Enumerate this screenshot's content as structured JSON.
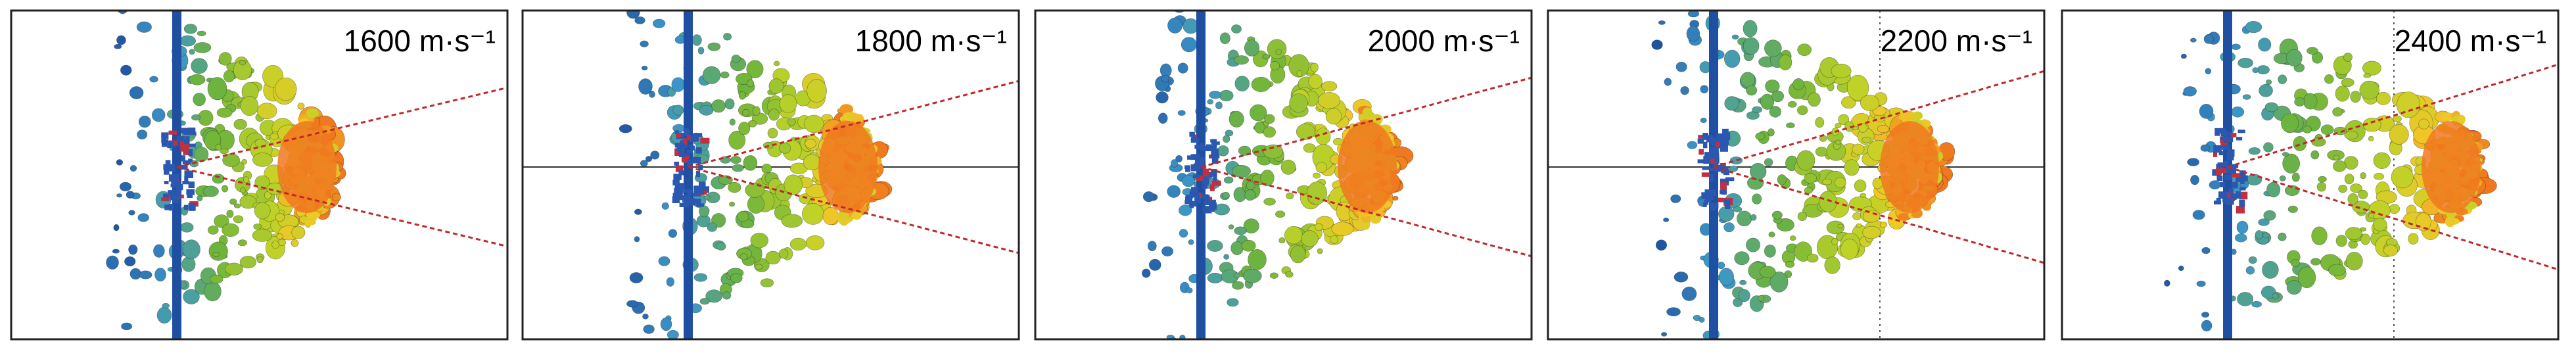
{
  "panels": [
    {
      "label": "1600 m·s⁻¹"
    },
    {
      "label": "1800 m·s⁻¹"
    },
    {
      "label": "2000 m·s⁻¹"
    },
    {
      "label": "2200 m·s⁻¹"
    },
    {
      "label": "2400 m·s⁻¹"
    }
  ]
}
